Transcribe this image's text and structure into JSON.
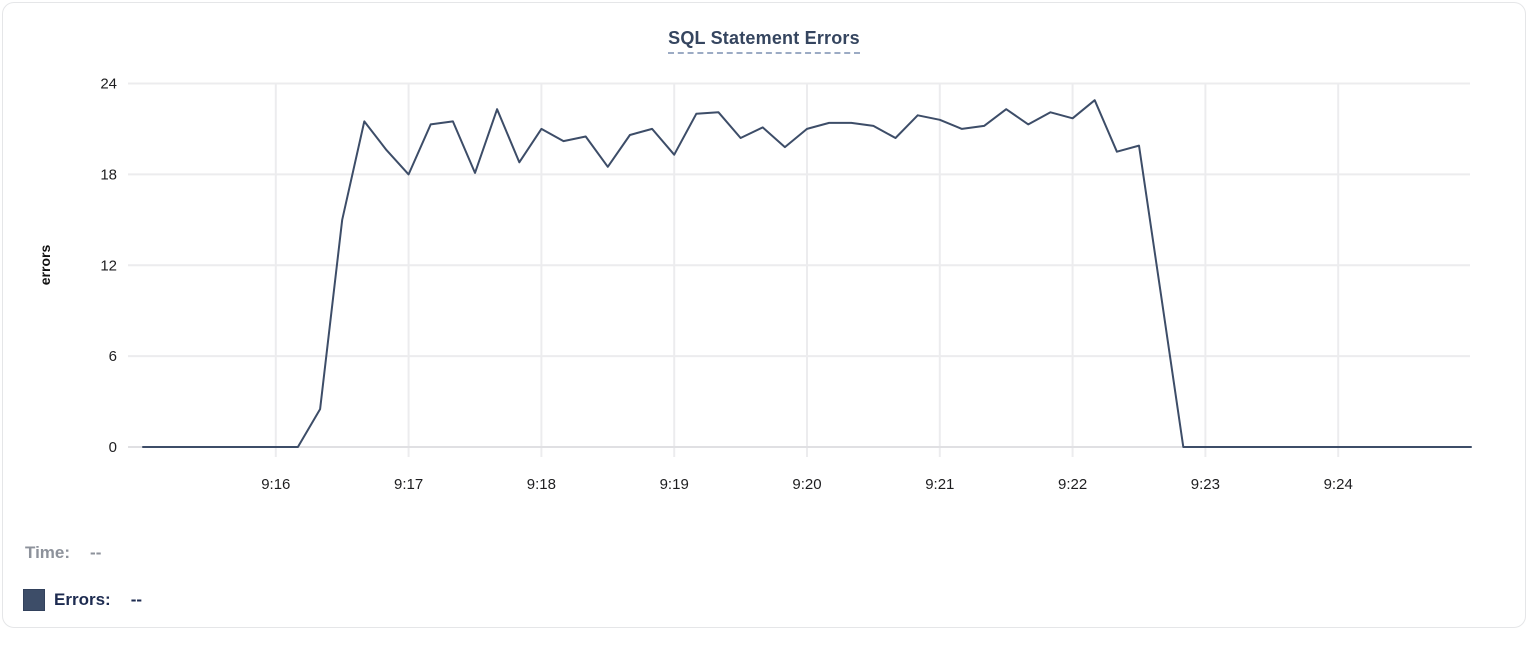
{
  "chart_data": {
    "type": "line",
    "title": "SQL Statement Errors",
    "ylabel": "errors",
    "ylim": [
      0,
      24
    ],
    "y_ticks": [
      0,
      6,
      12,
      18,
      24
    ],
    "x_ticks": [
      "9:16",
      "9:17",
      "9:18",
      "9:19",
      "9:20",
      "9:21",
      "9:22",
      "9:23",
      "9:24"
    ],
    "x_range": [
      "9:15",
      "9:25"
    ],
    "interval_seconds": 10,
    "grid": true,
    "line_color": "#3d4d68",
    "series": [
      {
        "name": "Errors",
        "start": "9:15",
        "values": [
          0,
          0,
          0,
          0,
          0,
          0,
          0,
          0,
          2.5,
          15,
          21.5,
          19.6,
          18,
          21.3,
          21.5,
          18.1,
          22.3,
          18.8,
          21,
          20.2,
          20.5,
          18.5,
          20.6,
          21,
          19.3,
          22,
          22.1,
          20.4,
          21.1,
          19.8,
          21,
          21.4,
          21.4,
          21.2,
          20.4,
          21.9,
          21.6,
          21,
          21.2,
          22.3,
          21.3,
          22.1,
          21.7,
          22.9,
          19.5,
          19.9,
          10,
          0,
          0,
          0,
          0,
          0,
          0,
          0,
          0,
          0,
          0,
          0,
          0,
          0,
          0
        ]
      }
    ]
  },
  "legend": {
    "time_label": "Time:",
    "time_value": "--",
    "errors_label": "Errors:",
    "errors_value": "--"
  },
  "colors": {
    "line": "#3d4d68",
    "gridline": "#ececee",
    "zero_line": "#e0e0e3",
    "title": "#35455f",
    "legend_time": "#8d929b",
    "legend_errors": "#1d2b50",
    "swatch": "#3d4d68"
  }
}
